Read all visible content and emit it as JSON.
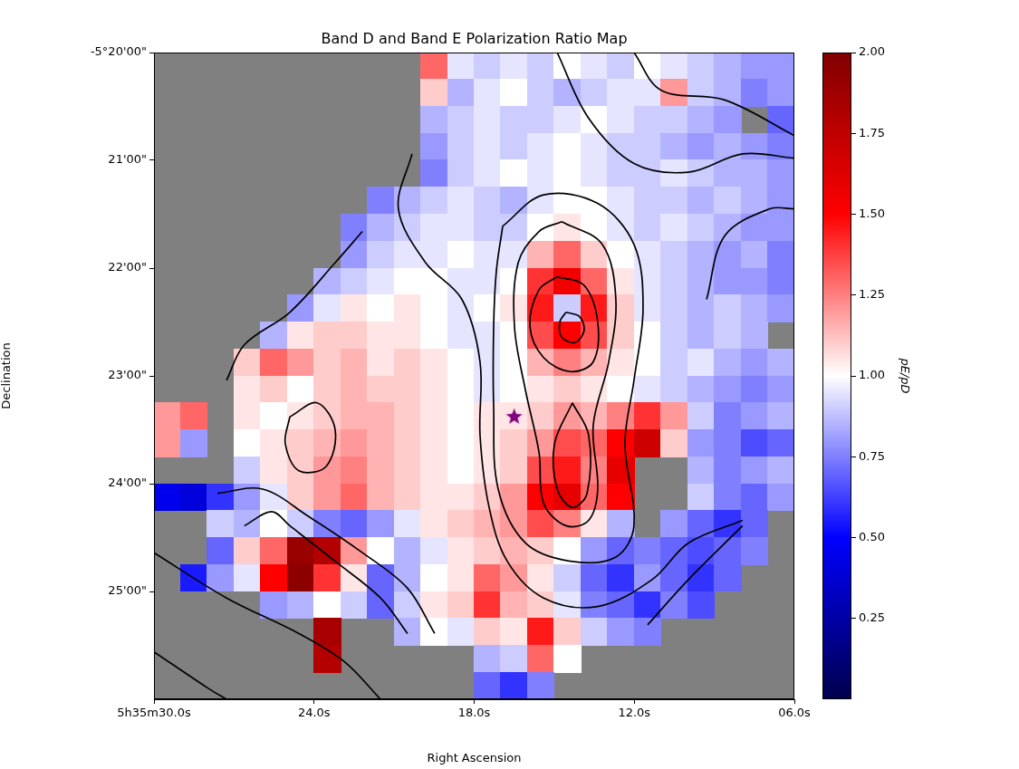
{
  "chart_data": {
    "type": "heatmap",
    "title": "Band D and Band E Polarization Ratio Map",
    "x_label": "Right Ascension",
    "y_label": "Declination",
    "xlim": [
      30,
      6
    ],
    "ylim": [
      -26,
      -20
    ],
    "xticks": [
      {
        "value": 30,
        "label": "5h35m30.0s"
      },
      {
        "value": 24,
        "label": "24.0s"
      },
      {
        "value": 18,
        "label": "18.0s"
      },
      {
        "value": 12,
        "label": "12.0s"
      },
      {
        "value": 6,
        "label": "06.0s"
      }
    ],
    "yticks": [
      {
        "value": -20,
        "label": "-5°20'00\""
      },
      {
        "value": -21,
        "label": "21'00\""
      },
      {
        "value": -22,
        "label": "22'00\""
      },
      {
        "value": -23,
        "label": "23'00\""
      },
      {
        "value": -24,
        "label": "24'00\""
      },
      {
        "value": -25,
        "label": "25'00\""
      }
    ],
    "grid": false,
    "x": [
      29.5,
      28.5,
      27.5,
      26.5,
      25.5,
      24.5,
      23.5,
      22.5,
      21.5,
      20.5,
      19.5,
      18.5,
      17.5,
      16.5,
      15.5,
      14.5,
      13.5,
      12.5,
      11.5,
      10.5,
      9.5,
      8.5,
      7.5,
      6.5
    ],
    "y": [
      -20.125,
      -20.375,
      -20.625,
      -20.875,
      -21.125,
      -21.375,
      -21.625,
      -21.875,
      -22.125,
      -22.375,
      -22.625,
      -22.875,
      -23.125,
      -23.375,
      -23.625,
      -23.875,
      -24.125,
      -24.375,
      -24.625,
      -24.875,
      -25.125,
      -25.375,
      -25.625,
      -25.875
    ],
    "values": [
      [
        null,
        null,
        null,
        null,
        null,
        null,
        null,
        null,
        null,
        null,
        1.3,
        0.95,
        0.9,
        0.95,
        0.9,
        1.0,
        0.95,
        0.9,
        1.0,
        0.95,
        0.9,
        0.85,
        0.8,
        0.8
      ],
      [
        null,
        null,
        null,
        null,
        null,
        null,
        null,
        null,
        null,
        null,
        1.1,
        0.85,
        0.95,
        1.0,
        0.9,
        0.85,
        0.9,
        0.95,
        0.95,
        1.2,
        0.9,
        0.85,
        0.75,
        0.8
      ],
      [
        null,
        null,
        null,
        null,
        null,
        null,
        null,
        null,
        null,
        null,
        0.85,
        0.9,
        0.95,
        0.9,
        0.9,
        0.95,
        1.0,
        0.95,
        0.9,
        0.9,
        0.85,
        0.8,
        null,
        0.7
      ],
      [
        null,
        null,
        null,
        null,
        null,
        null,
        null,
        null,
        null,
        null,
        0.8,
        0.9,
        0.95,
        0.9,
        0.95,
        1.0,
        0.95,
        0.9,
        0.9,
        0.85,
        0.8,
        0.85,
        0.8,
        0.75
      ],
      [
        null,
        null,
        null,
        null,
        null,
        null,
        null,
        null,
        null,
        null,
        0.75,
        0.9,
        0.95,
        1.0,
        0.95,
        1.0,
        0.95,
        0.9,
        0.9,
        0.95,
        0.9,
        0.85,
        0.85,
        0.8
      ],
      [
        null,
        null,
        null,
        null,
        null,
        null,
        null,
        null,
        0.75,
        0.85,
        0.9,
        0.95,
        0.9,
        0.85,
        0.95,
        1.0,
        1.0,
        0.95,
        0.9,
        0.9,
        0.85,
        0.9,
        0.85,
        0.8
      ],
      [
        null,
        null,
        null,
        null,
        null,
        null,
        null,
        0.75,
        0.85,
        0.9,
        0.95,
        0.95,
        0.9,
        0.9,
        1.0,
        1.05,
        1.0,
        0.95,
        0.9,
        0.95,
        0.9,
        0.85,
        0.8,
        0.8
      ],
      [
        null,
        null,
        null,
        null,
        null,
        null,
        null,
        0.8,
        0.9,
        0.95,
        0.95,
        1.0,
        0.95,
        0.95,
        1.15,
        1.3,
        1.1,
        1.0,
        0.95,
        0.9,
        0.85,
        0.8,
        0.85,
        0.75
      ],
      [
        null,
        null,
        null,
        null,
        null,
        null,
        0.85,
        0.9,
        0.95,
        1.0,
        1.0,
        0.95,
        0.95,
        1.0,
        1.4,
        1.55,
        1.3,
        1.05,
        0.95,
        0.9,
        0.85,
        0.8,
        0.8,
        0.75
      ],
      [
        null,
        null,
        null,
        null,
        null,
        0.8,
        0.95,
        1.05,
        1.0,
        1.05,
        1.0,
        0.95,
        1.0,
        1.05,
        1.45,
        0.9,
        1.45,
        1.1,
        0.95,
        0.9,
        0.85,
        0.9,
        0.85,
        0.8
      ],
      [
        null,
        null,
        null,
        null,
        0.85,
        1.05,
        1.1,
        1.1,
        1.05,
        1.05,
        1.0,
        0.95,
        0.95,
        1.0,
        1.35,
        1.5,
        1.35,
        1.1,
        1.0,
        0.9,
        0.85,
        0.9,
        0.85,
        null
      ],
      [
        null,
        null,
        null,
        1.1,
        1.3,
        1.2,
        1.1,
        1.15,
        1.05,
        1.1,
        1.05,
        1.0,
        0.95,
        1.0,
        1.15,
        1.25,
        1.15,
        1.05,
        1.0,
        0.9,
        0.95,
        0.85,
        0.8,
        0.85
      ],
      [
        null,
        null,
        null,
        1.05,
        1.1,
        1.0,
        1.1,
        1.15,
        1.1,
        1.1,
        1.05,
        1.0,
        0.95,
        1.0,
        1.05,
        1.1,
        1.05,
        1.0,
        0.95,
        0.9,
        0.85,
        0.8,
        0.75,
        0.8
      ],
      [
        1.2,
        1.3,
        null,
        1.05,
        1.0,
        1.05,
        1.1,
        1.15,
        1.15,
        1.1,
        1.05,
        1.0,
        1.05,
        1.05,
        1.1,
        1.2,
        1.15,
        1.25,
        1.4,
        1.2,
        0.9,
        0.75,
        0.8,
        0.85
      ],
      [
        1.2,
        0.8,
        null,
        1.0,
        1.05,
        1.1,
        1.15,
        1.2,
        1.15,
        1.1,
        1.05,
        1.0,
        1.05,
        1.1,
        1.2,
        1.35,
        1.3,
        1.5,
        1.7,
        1.1,
        0.8,
        0.75,
        0.65,
        0.7
      ],
      [
        null,
        null,
        null,
        0.9,
        1.05,
        1.1,
        1.2,
        1.25,
        1.15,
        1.1,
        1.05,
        1.0,
        1.05,
        1.1,
        1.35,
        1.45,
        1.25,
        1.6,
        null,
        null,
        0.85,
        0.75,
        0.8,
        0.85
      ],
      [
        0.45,
        0.4,
        0.6,
        0.8,
        0.95,
        1.1,
        1.2,
        1.3,
        1.15,
        1.1,
        1.05,
        1.05,
        1.1,
        1.2,
        1.5,
        1.6,
        1.3,
        1.5,
        null,
        null,
        0.9,
        0.75,
        0.7,
        0.8
      ],
      [
        null,
        null,
        0.9,
        0.85,
        1.0,
        0.9,
        0.75,
        0.7,
        0.8,
        0.95,
        1.05,
        1.1,
        1.15,
        1.2,
        1.35,
        1.25,
        1.05,
        0.85,
        null,
        0.8,
        0.7,
        0.6,
        0.7,
        null
      ],
      [
        null,
        null,
        0.7,
        1.1,
        1.3,
        1.9,
        1.8,
        1.2,
        1.0,
        0.85,
        0.95,
        1.05,
        1.1,
        1.15,
        1.1,
        1.0,
        0.8,
        0.7,
        0.75,
        0.7,
        0.65,
        0.7,
        0.75,
        null
      ],
      [
        null,
        0.55,
        0.8,
        0.95,
        1.5,
        1.95,
        1.4,
        1.05,
        0.7,
        0.85,
        1.0,
        1.05,
        1.3,
        1.2,
        1.05,
        0.9,
        0.7,
        0.6,
        0.8,
        0.7,
        0.6,
        0.7,
        null,
        null
      ],
      [
        null,
        null,
        null,
        null,
        0.8,
        0.85,
        1.0,
        0.9,
        0.7,
        0.9,
        1.05,
        1.1,
        1.4,
        1.15,
        1.1,
        0.95,
        0.75,
        0.7,
        0.6,
        0.75,
        0.65,
        null,
        null,
        null
      ],
      [
        null,
        null,
        null,
        null,
        null,
        null,
        1.85,
        null,
        null,
        0.85,
        1.0,
        0.95,
        1.1,
        1.05,
        1.45,
        1.1,
        0.9,
        0.8,
        0.75,
        null,
        null,
        null,
        null,
        null
      ],
      [
        null,
        null,
        null,
        null,
        null,
        null,
        1.8,
        null,
        null,
        null,
        null,
        null,
        0.85,
        0.9,
        1.3,
        1.0,
        null,
        null,
        null,
        null,
        null,
        null,
        null,
        null
      ],
      [
        null,
        null,
        null,
        null,
        null,
        null,
        null,
        null,
        null,
        null,
        null,
        null,
        0.7,
        0.6,
        0.75,
        null,
        null,
        null,
        null,
        null,
        null,
        null,
        null,
        null
      ]
    ],
    "colorbar": {
      "label": "pE/pD",
      "range": [
        0,
        2
      ],
      "ticks": [
        0.25,
        {
          "value": 0.5,
          "label": "0.50"
        },
        0.75,
        {
          "value": 1,
          "label": "1.00"
        },
        1.25,
        {
          "value": 1.5,
          "label": "1.50"
        },
        1.75,
        {
          "value": 2,
          "label": "2.00"
        }
      ]
    },
    "contours": [
      [
        [
          14.56,
          -22.41
        ],
        [
          14.05,
          -22.45
        ],
        [
          13.88,
          -22.58
        ],
        [
          14.22,
          -22.69
        ],
        [
          14.72,
          -22.64
        ],
        [
          14.79,
          -22.5
        ],
        [
          14.56,
          -22.41
        ]
      ],
      [
        [
          14.89,
          -22.08
        ],
        [
          13.88,
          -22.16
        ],
        [
          13.37,
          -22.5
        ],
        [
          13.54,
          -22.87
        ],
        [
          14.39,
          -22.96
        ],
        [
          15.4,
          -22.83
        ],
        [
          15.91,
          -22.54
        ],
        [
          15.57,
          -22.2
        ],
        [
          14.89,
          -22.08
        ]
      ],
      [
        [
          14.72,
          -21.57
        ],
        [
          13.2,
          -21.78
        ],
        [
          12.69,
          -22.29
        ],
        [
          12.96,
          -22.87
        ],
        [
          13.54,
          -23.46
        ],
        [
          13.37,
          -24.05
        ],
        [
          13.71,
          -24.34
        ],
        [
          14.56,
          -24.39
        ],
        [
          15.4,
          -24.18
        ],
        [
          15.57,
          -23.71
        ],
        [
          16.08,
          -23.13
        ],
        [
          16.49,
          -22.54
        ],
        [
          16.35,
          -21.95
        ],
        [
          15.57,
          -21.66
        ],
        [
          14.72,
          -21.57
        ]
      ],
      [
        [
          14.32,
          -23.25
        ],
        [
          13.71,
          -23.55
        ],
        [
          13.77,
          -24.09
        ],
        [
          14.32,
          -24.22
        ],
        [
          14.89,
          -24.05
        ],
        [
          14.99,
          -23.63
        ],
        [
          14.32,
          -23.25
        ]
      ],
      [
        [
          16.93,
          -21.61
        ],
        [
          15.4,
          -21.32
        ],
        [
          13.37,
          -21.4
        ],
        [
          12.01,
          -21.78
        ],
        [
          11.67,
          -22.37
        ],
        [
          12.01,
          -23.04
        ],
        [
          12.35,
          -23.63
        ],
        [
          12.01,
          -24.39
        ],
        [
          12.69,
          -24.68
        ],
        [
          14.39,
          -24.72
        ],
        [
          16.08,
          -24.55
        ],
        [
          17.1,
          -24.05
        ],
        [
          17.27,
          -23.29
        ],
        [
          17.27,
          -22.54
        ],
        [
          17.17,
          -22.03
        ],
        [
          16.93,
          -21.61
        ]
      ],
      [
        [
          20.33,
          -20.94
        ],
        [
          20.84,
          -21.45
        ],
        [
          19.82,
          -21.95
        ],
        [
          18.46,
          -22.29
        ],
        [
          17.78,
          -22.87
        ],
        [
          17.78,
          -23.55
        ],
        [
          17.44,
          -24.22
        ],
        [
          16.76,
          -24.72
        ],
        [
          15.4,
          -25.06
        ],
        [
          13.37,
          -25.14
        ],
        [
          11.33,
          -24.89
        ],
        [
          9.97,
          -24.55
        ],
        [
          7.94,
          -24.34
        ]
      ],
      [
        [
          14.89,
          -20.0
        ],
        [
          13.71,
          -20.61
        ],
        [
          12.01,
          -21.03
        ],
        [
          9.97,
          -21.11
        ],
        [
          7.94,
          -20.94
        ],
        [
          6.0,
          -20.98
        ]
      ],
      [
        [
          12.01,
          -20.0
        ],
        [
          10.99,
          -20.35
        ],
        [
          8.61,
          -20.44
        ],
        [
          6.0,
          -20.77
        ]
      ],
      [
        [
          6.0,
          -21.45
        ],
        [
          6.92,
          -21.45
        ],
        [
          8.61,
          -21.7
        ],
        [
          9.29,
          -22.29
        ]
      ],
      [
        [
          24.91,
          -23.38
        ],
        [
          23.89,
          -23.25
        ],
        [
          23.21,
          -23.5
        ],
        [
          23.55,
          -23.84
        ],
        [
          24.57,
          -23.88
        ],
        [
          25.08,
          -23.63
        ],
        [
          24.91,
          -23.38
        ]
      ],
      [
        [
          27.28,
          -23.04
        ],
        [
          26.61,
          -22.71
        ],
        [
          24.91,
          -22.41
        ],
        [
          23.21,
          -21.95
        ],
        [
          22.19,
          -21.66
        ]
      ],
      [
        [
          27.62,
          -24.09
        ],
        [
          25.93,
          -24.05
        ],
        [
          24.23,
          -24.3
        ],
        [
          22.19,
          -24.64
        ],
        [
          20.5,
          -24.97
        ],
        [
          19.48,
          -25.39
        ]
      ],
      [
        [
          26.61,
          -24.39
        ],
        [
          25.59,
          -24.26
        ],
        [
          24.91,
          -24.39
        ],
        [
          23.21,
          -24.72
        ],
        [
          21.51,
          -25.06
        ],
        [
          20.5,
          -25.39
        ]
      ],
      [
        [
          30.0,
          -24.64
        ],
        [
          27.28,
          -25.06
        ],
        [
          24.57,
          -25.39
        ],
        [
          22.87,
          -25.65
        ],
        [
          21.51,
          -26.0
        ]
      ],
      [
        [
          30.0,
          -25.56
        ],
        [
          27.96,
          -25.9
        ],
        [
          27.28,
          -26.0
        ]
      ],
      [
        [
          11.5,
          -25.31
        ],
        [
          9.97,
          -24.89
        ],
        [
          7.94,
          -24.39
        ]
      ]
    ],
    "points": [
      {
        "x": 16.5,
        "y": -23.38,
        "marker": "star",
        "color": "purple"
      }
    ]
  }
}
